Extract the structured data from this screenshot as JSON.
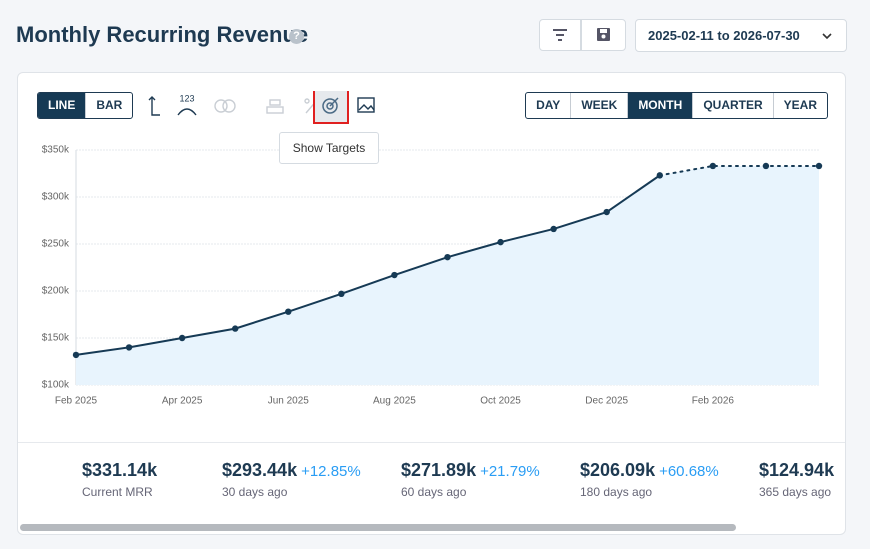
{
  "header": {
    "title": "Monthly Recurring Revenue",
    "date_range": "2025-02-11 to 2026-07-30"
  },
  "toolbar": {
    "chart_types": [
      "LINE",
      "BAR"
    ],
    "active_chart_type": "LINE",
    "icon_label": "123",
    "tooltip": "Show Targets",
    "periods": [
      "DAY",
      "WEEK",
      "MONTH",
      "QUARTER",
      "YEAR"
    ],
    "active_period": "MONTH"
  },
  "chart_data": {
    "type": "line",
    "categories": [
      "Feb 2025",
      null,
      "Apr 2025",
      null,
      "Jun 2025",
      null,
      "Aug 2025",
      null,
      "Oct 2025",
      null,
      "Dec 2025",
      null,
      "Feb 2026",
      null,
      null
    ],
    "series": [
      {
        "color": "#163a55",
        "style": "solid",
        "values": [
          132000,
          140000,
          150000,
          160000,
          178000,
          197000,
          217000,
          236000,
          252000,
          266000,
          284000,
          323000,
          null,
          null,
          null
        ]
      },
      {
        "color": "#163a55",
        "style": "dotted",
        "values": [
          null,
          null,
          null,
          null,
          null,
          null,
          null,
          null,
          null,
          null,
          null,
          null,
          333000,
          333000,
          333000
        ]
      }
    ],
    "area_color": "#e8f4fd",
    "ylim": [
      100000,
      350000
    ],
    "yticks": [
      {
        "value": 100000,
        "label": "$100k"
      },
      {
        "value": 150000,
        "label": "$150k"
      },
      {
        "value": 200000,
        "label": "$200k"
      },
      {
        "value": 250000,
        "label": "$250k"
      },
      {
        "value": 300000,
        "label": "$300k"
      },
      {
        "value": 350000,
        "label": "$350k"
      }
    ],
    "grid": true
  },
  "stats": [
    {
      "value": "$331.14k",
      "label": "Current MRR"
    },
    {
      "value": "$293.44k",
      "change": "+12.85%",
      "label": "30 days ago"
    },
    {
      "value": "$271.89k",
      "change": "+21.79%",
      "label": "60 days ago"
    },
    {
      "value": "$206.09k",
      "change": "+60.68%",
      "label": "180 days ago"
    },
    {
      "value": "$124.94k",
      "label": "365 days ago"
    }
  ]
}
